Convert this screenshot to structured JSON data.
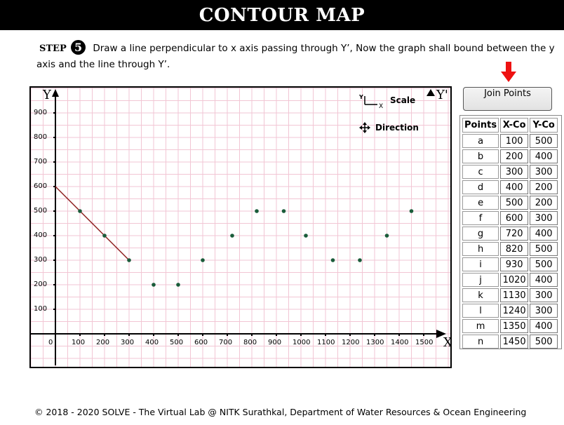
{
  "header": {
    "title": "CONTOUR MAP"
  },
  "instruction": {
    "step_label": "STEP",
    "step_number": "5",
    "text": "Draw a line perpendicular to x axis passing through Y’, Now the graph shall bound between the y axis and the line through Y’."
  },
  "join_button": {
    "label": "Join Points",
    "arrow_color": "#ee1111"
  },
  "points_table": {
    "headers": [
      "Points",
      "X-Co",
      "Y-Co"
    ],
    "rows": [
      {
        "name": "a",
        "x": "100",
        "y": "500"
      },
      {
        "name": "b",
        "x": "200",
        "y": "400"
      },
      {
        "name": "c",
        "x": "300",
        "y": "300"
      },
      {
        "name": "d",
        "x": "400",
        "y": "200"
      },
      {
        "name": "e",
        "x": "500",
        "y": "200"
      },
      {
        "name": "f",
        "x": "600",
        "y": "300"
      },
      {
        "name": "g",
        "x": "720",
        "y": "400"
      },
      {
        "name": "h",
        "x": "820",
        "y": "500"
      },
      {
        "name": "i",
        "x": "930",
        "y": "500"
      },
      {
        "name": "j",
        "x": "1020",
        "y": "400"
      },
      {
        "name": "k",
        "x": "1130",
        "y": "300"
      },
      {
        "name": "l",
        "x": "1240",
        "y": "300"
      },
      {
        "name": "m",
        "x": "1350",
        "y": "400"
      },
      {
        "name": "n",
        "x": "1450",
        "y": "500"
      }
    ]
  },
  "graph": {
    "y_axis_label": "Y",
    "y_prime_label": "Y'",
    "x_axis_label": "X",
    "legend": {
      "scale_label": "Scale",
      "direction_label": "Direction",
      "scale_icon_y": "Y",
      "scale_icon_x": "X"
    },
    "grid_color": "#f2c6d4",
    "point_color": "#1a5c3a",
    "line_color": "#8b1a1a"
  },
  "chart_data": {
    "type": "scatter",
    "x_ticks": [
      "0",
      "100",
      "200",
      "300",
      "400",
      "500",
      "600",
      "700",
      "800",
      "900",
      "1000",
      "1100",
      "1200",
      "1300",
      "1400",
      "1500"
    ],
    "y_ticks": [
      "100",
      "200",
      "300",
      "400",
      "500",
      "600",
      "700",
      "800",
      "900"
    ],
    "xlim": [
      0,
      1600
    ],
    "ylim": [
      0,
      1000
    ],
    "points": [
      {
        "x": 100,
        "y": 500
      },
      {
        "x": 200,
        "y": 400
      },
      {
        "x": 300,
        "y": 300
      },
      {
        "x": 400,
        "y": 200
      },
      {
        "x": 500,
        "y": 200
      },
      {
        "x": 600,
        "y": 300
      },
      {
        "x": 720,
        "y": 400
      },
      {
        "x": 820,
        "y": 500
      },
      {
        "x": 930,
        "y": 500
      },
      {
        "x": 1020,
        "y": 400
      },
      {
        "x": 1130,
        "y": 300
      },
      {
        "x": 1240,
        "y": 300
      },
      {
        "x": 1350,
        "y": 400
      },
      {
        "x": 1450,
        "y": 500
      }
    ],
    "drawn_line": [
      {
        "x": 0,
        "y": 600
      },
      {
        "x": 100,
        "y": 500
      },
      {
        "x": 200,
        "y": 400
      },
      {
        "x": 300,
        "y": 300
      }
    ],
    "grid": true
  },
  "footer": {
    "text": "© 2018 - 2020 SOLVE - The Virtual Lab @ NITK Surathkal, Department of Water Resources & Ocean Engineering"
  }
}
